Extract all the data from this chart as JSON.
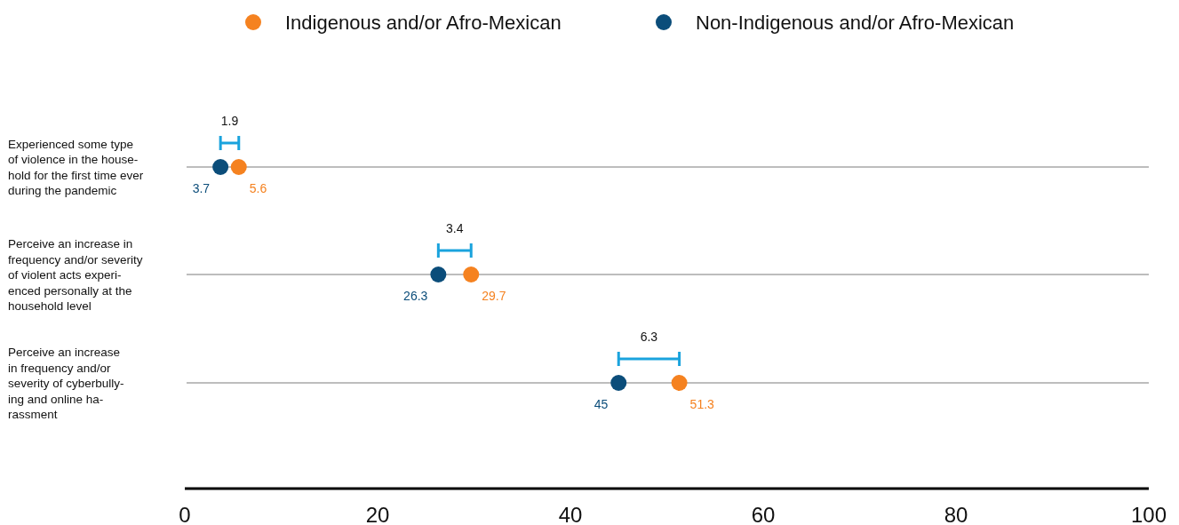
{
  "chart_data": {
    "type": "scatter",
    "orientation": "horizontal",
    "categories": [
      "Experienced some type\nof violence in the house-\nhold for the first time ever\nduring the pandemic",
      "Perceive an increase in\nfrequency and/or severity\nof violent acts experi-\nenced personally at the\nhousehold level",
      "Perceive an increase\nin frequency and/or\nseverity of cyberbully-\ning and online ha-\nrassment"
    ],
    "series": [
      {
        "name": "Indigenous and/or Afro-Mexican",
        "color": "#f58220",
        "values": [
          5.6,
          29.7,
          51.3
        ]
      },
      {
        "name": "Non-Indigenous and/or Afro-Mexican",
        "color": "#0b4d7a",
        "values": [
          3.7,
          26.3,
          45
        ]
      }
    ],
    "xlim": [
      0,
      100
    ],
    "xticks": [
      0,
      20,
      40,
      60,
      80,
      100
    ],
    "grid": "y",
    "legend": "top",
    "marker": "circle",
    "data_labels": true,
    "annotations": [
      "1.9",
      "3.4",
      "6.3"
    ]
  }
}
